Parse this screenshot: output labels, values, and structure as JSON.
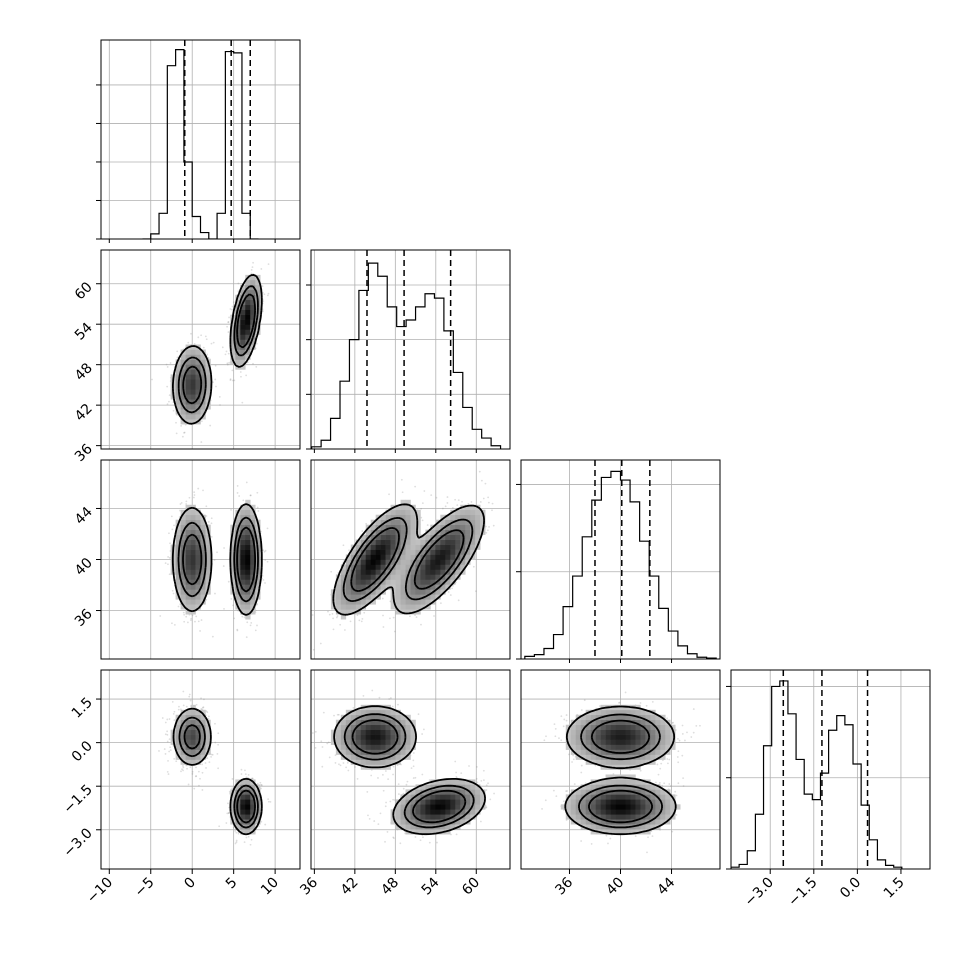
{
  "chart_data": {
    "type": "corner",
    "description_params": 4,
    "axes": [
      {
        "index": 0,
        "range": [
          -11,
          13
        ],
        "ticks": [
          -10,
          -5,
          0,
          5,
          10
        ],
        "tick_labels": [
          "−10",
          "−5",
          "0",
          "5",
          "10"
        ],
        "quantiles": [
          -0.9,
          4.7,
          7.0
        ],
        "hist": {
          "edges_start": -6,
          "bin_width": 1,
          "counts": [
            0,
            8,
            40,
            270,
            295,
            120,
            35,
            10,
            0,
            40,
            292,
            290,
            40,
            0
          ]
        }
      },
      {
        "index": 1,
        "range": [
          35.5,
          65
        ],
        "ticks": [
          36,
          42,
          48,
          54,
          60
        ],
        "tick_labels": [
          "36",
          "42",
          "48",
          "54",
          "60"
        ],
        "quantiles": [
          43.8,
          49.3,
          56.2
        ],
        "hist": {
          "edges_start": 35.6,
          "bin_width": 1.4,
          "counts": [
            2,
            8,
            28,
            62,
            100,
            145,
            170,
            158,
            130,
            112,
            118,
            130,
            142,
            138,
            108,
            70,
            38,
            18,
            10,
            3
          ]
        }
      },
      {
        "index": 2,
        "range": [
          32.2,
          47.8
        ],
        "ticks": [
          36,
          40,
          44
        ],
        "tick_labels": [
          "36",
          "40",
          "44"
        ],
        "quantiles": [
          38.0,
          40.1,
          42.3
        ],
        "hist": {
          "edges_start": 32.5,
          "bin_width": 0.75,
          "counts": [
            3,
            5,
            12,
            28,
            60,
            95,
            140,
            182,
            208,
            215,
            205,
            180,
            135,
            95,
            58,
            32,
            15,
            6,
            2,
            1
          ]
        }
      },
      {
        "index": 3,
        "range": [
          -4.35,
          2.5
        ],
        "ticks": [
          -3.0,
          -1.5,
          0.0,
          1.5
        ],
        "tick_labels": [
          "−3.0",
          "−1.5",
          "0.0",
          "1.5"
        ],
        "quantiles": [
          -2.55,
          -1.22,
          0.35
        ],
        "hist": {
          "edges_start": -4.35,
          "bin_width": 0.28,
          "counts": [
            2,
            5,
            20,
            60,
            135,
            200,
            206,
            170,
            120,
            82,
            76,
            105,
            152,
            168,
            158,
            115,
            70,
            32,
            10,
            4,
            2
          ]
        }
      }
    ],
    "hist_ymax": [
      310,
      182,
      228,
      218
    ],
    "hist_ygrid": [
      [
        60,
        120,
        180,
        240
      ],
      [
        50,
        100,
        150
      ],
      [
        100,
        200
      ],
      [
        100,
        200
      ]
    ],
    "components": [
      {
        "mean": [
          0,
          45,
          40,
          0.2
        ],
        "sd": [
          1.2,
          3.0,
          2.1,
          0.52
        ]
      },
      {
        "mean": [
          6.5,
          54.5,
          40,
          -2.2
        ],
        "sd": [
          0.9,
          3.3,
          2.1,
          0.46
        ]
      }
    ],
    "pair_corr": {
      "0-1": [
        0.05,
        0.45
      ],
      "0-2": [
        0.0,
        0.0
      ],
      "0-3": [
        0.0,
        0.0
      ],
      "1-2": [
        0.72,
        0.72
      ],
      "1-3": [
        0.0,
        0.3
      ],
      "2-3": [
        0.0,
        0.0
      ]
    },
    "grid": "on",
    "xlabel": "",
    "ylabel": ""
  }
}
